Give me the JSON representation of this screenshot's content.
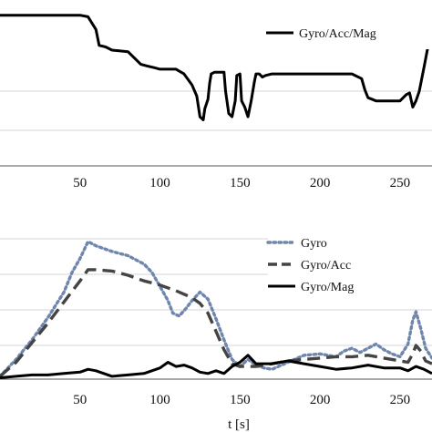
{
  "chart_data": [
    {
      "type": "line",
      "xlim": [
        0,
        270
      ],
      "xticks": [
        50,
        100,
        150,
        200,
        250
      ],
      "grid": "horizontal",
      "legend": "top-right",
      "series": [
        {
          "name": "Gyro/Acc/Mag",
          "color": "#000000",
          "style": "solid",
          "x": [
            0,
            5,
            50,
            55,
            60,
            62,
            66,
            70,
            80,
            88,
            92,
            96,
            100,
            104,
            110,
            115,
            120,
            123,
            125,
            127,
            128,
            130,
            131,
            132,
            134,
            140,
            141,
            143,
            145,
            147,
            148,
            150,
            151,
            153,
            155,
            157,
            159,
            160,
            162,
            164,
            166,
            170,
            200,
            210,
            220,
            226,
            228,
            230,
            235,
            240,
            245,
            248,
            250,
            252,
            254,
            256,
            258,
            260,
            262,
            265,
            268,
            270
          ],
          "y": [
            95,
            95,
            95,
            94,
            86,
            76,
            75,
            73,
            72,
            64,
            63,
            62,
            61,
            61,
            61,
            58,
            51,
            44,
            31,
            29,
            36,
            42,
            52,
            58,
            59,
            59,
            47,
            33,
            31,
            41,
            57,
            58,
            41,
            37,
            31,
            41,
            53,
            58,
            58,
            56,
            57,
            58,
            58,
            58,
            58,
            55,
            48,
            43,
            41,
            41,
            41,
            41,
            41,
            43,
            45,
            46,
            37,
            41,
            47,
            62,
            78,
            85
          ]
        }
      ]
    },
    {
      "type": "line",
      "xlabel": "t [s]",
      "xlim": [
        0,
        270
      ],
      "xticks": [
        50,
        100,
        150,
        200,
        250
      ],
      "grid": "horizontal",
      "legend": "top-right",
      "series": [
        {
          "name": "Gyro",
          "color": "#6f86ad",
          "style": "dotted",
          "x": [
            0,
            10,
            20,
            30,
            40,
            45,
            50,
            55,
            60,
            70,
            80,
            90,
            95,
            100,
            105,
            108,
            112,
            116,
            120,
            125,
            130,
            135,
            140,
            145,
            150,
            155,
            160,
            165,
            170,
            180,
            190,
            200,
            210,
            215,
            220,
            225,
            230,
            235,
            240,
            245,
            250,
            255,
            258,
            260,
            263,
            266,
            270
          ],
          "y": [
            2,
            14,
            28,
            44,
            62,
            76,
            86,
            98,
            95,
            91,
            88,
            82,
            76,
            66,
            56,
            47,
            45,
            50,
            56,
            62,
            57,
            43,
            28,
            14,
            9,
            14,
            10,
            8,
            7,
            12,
            17,
            18,
            16,
            20,
            22,
            19,
            22,
            25,
            21,
            18,
            16,
            25,
            42,
            48,
            36,
            22,
            15
          ]
        },
        {
          "name": "Gyro/Acc",
          "color": "#444444",
          "style": "dashed",
          "x": [
            0,
            10,
            20,
            30,
            40,
            50,
            55,
            60,
            70,
            80,
            90,
            100,
            110,
            120,
            125,
            130,
            135,
            140,
            145,
            150,
            160,
            170,
            180,
            190,
            200,
            210,
            220,
            230,
            240,
            250,
            255,
            258,
            260,
            263,
            266,
            270
          ],
          "y": [
            2,
            12,
            26,
            40,
            55,
            70,
            78,
            78,
            77,
            74,
            70,
            67,
            63,
            58,
            54,
            47,
            34,
            21,
            11,
            9,
            9,
            11,
            13,
            14,
            15,
            16,
            16,
            17,
            15,
            13,
            12,
            18,
            24,
            20,
            13,
            11
          ]
        },
        {
          "name": "Gyro/Mag",
          "color": "#000000",
          "style": "solid",
          "x": [
            0,
            10,
            20,
            30,
            40,
            50,
            55,
            60,
            70,
            80,
            90,
            100,
            105,
            110,
            115,
            120,
            125,
            130,
            135,
            140,
            145,
            150,
            155,
            160,
            170,
            180,
            190,
            200,
            210,
            220,
            230,
            240,
            250,
            255,
            260,
            265,
            270
          ],
          "y": [
            1,
            2,
            3,
            3,
            4,
            5,
            7,
            6,
            2,
            3,
            4,
            8,
            12,
            9,
            10,
            8,
            5,
            4,
            6,
            4,
            9,
            12,
            17,
            11,
            11,
            13,
            11,
            9,
            7,
            8,
            10,
            8,
            8,
            6,
            9,
            7,
            4
          ]
        }
      ]
    }
  ]
}
